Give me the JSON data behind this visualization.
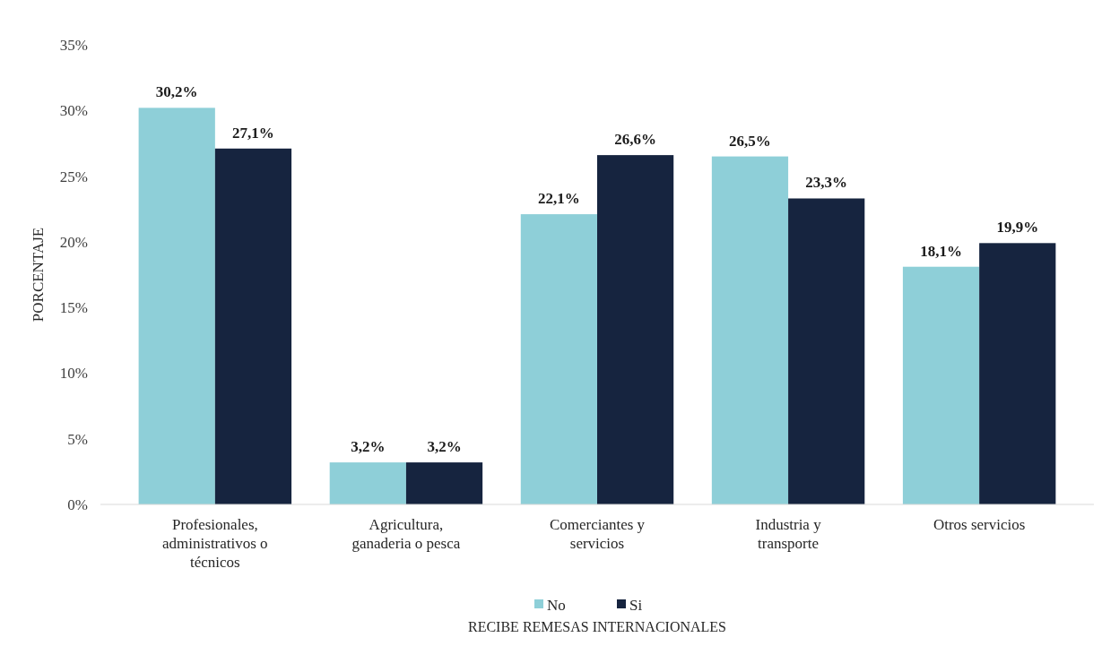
{
  "chart_data": {
    "type": "bar",
    "xlabel": "RECIBE REMESAS INTERNACIONALES",
    "ylabel": "PORCENTAJE",
    "categories": [
      "Profesionales, administrativos o técnicos",
      "Agricultura, ganaderia o pesca",
      "Comerciantes y servicios",
      "Industria y transporte",
      "Otros servicios"
    ],
    "series": [
      {
        "name": "No",
        "color": "#8ecfd8",
        "values": [
          30.2,
          3.2,
          22.1,
          26.5,
          18.1
        ],
        "value_labels": [
          "30,2%",
          "3,2%",
          "22,1%",
          "26,5%",
          "18,1%"
        ]
      },
      {
        "name": "Si",
        "color": "#16243f",
        "values": [
          27.1,
          3.2,
          26.6,
          23.3,
          19.9
        ],
        "value_labels": [
          "27,1%",
          "3,2%",
          "26,6%",
          "23,3%",
          "19,9%"
        ]
      }
    ],
    "ylim": [
      0,
      35
    ],
    "yticks": [
      {
        "value": 0,
        "label": "0%"
      },
      {
        "value": 5,
        "label": "5%"
      },
      {
        "value": 10,
        "label": "10%"
      },
      {
        "value": 15,
        "label": "15%"
      },
      {
        "value": 20,
        "label": "20%"
      },
      {
        "value": 25,
        "label": "25%"
      },
      {
        "value": 30,
        "label": "30%"
      },
      {
        "value": 35,
        "label": "35%"
      }
    ],
    "grid": false,
    "legend": "bottom"
  }
}
